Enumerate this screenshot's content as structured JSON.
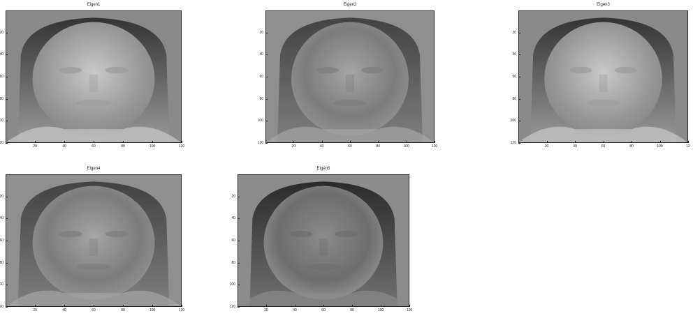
{
  "figure": {
    "panels": [
      {
        "title": "Eigen1",
        "face_tone": "light"
      },
      {
        "title": "Eigen2",
        "face_tone": "mid"
      },
      {
        "title": "Eigen3",
        "face_tone": "light"
      },
      {
        "title": "Eigen4",
        "face_tone": "mid"
      },
      {
        "title": "Eigen5",
        "face_tone": "dark"
      }
    ],
    "axes": {
      "yticks": [
        "20",
        "40",
        "60",
        "80",
        "100",
        "120"
      ],
      "xticks": [
        "20",
        "40",
        "60",
        "80",
        "100",
        "120"
      ],
      "yticks_clipped_panel3": [
        "20",
        "40",
        "60",
        "80",
        "100",
        "120"
      ],
      "xticks_clipped_panel3": [
        "20",
        "40",
        "60",
        "80",
        "100",
        "12"
      ]
    }
  }
}
